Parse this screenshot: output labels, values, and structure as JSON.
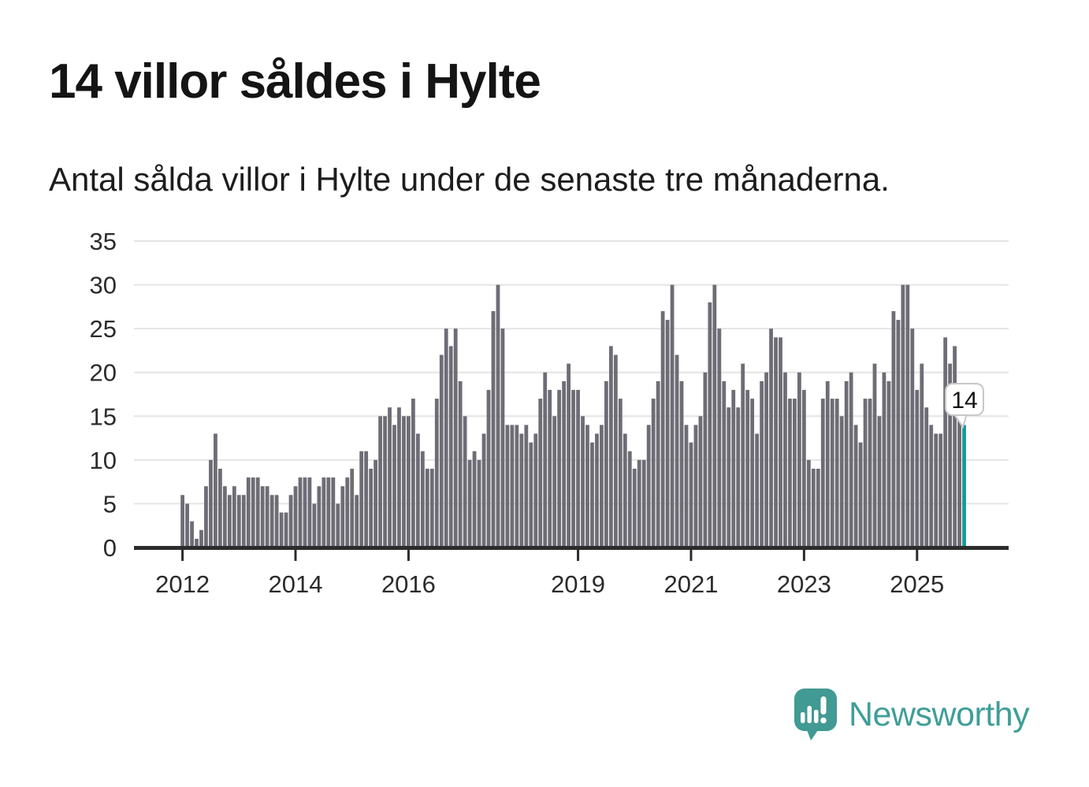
{
  "page": {
    "title": "14 villor såldes i Hylte",
    "subtitle": "Antal sålda villor i Hylte under de senaste tre månaderna."
  },
  "branding": {
    "logo_text": "Newsworthy",
    "logo_text_color": "#3f9e98",
    "icon_color": "#419a93"
  },
  "chart_data": {
    "type": "bar",
    "title": "14 villor såldes i Hylte",
    "subtitle": "Antal sålda villor i Hylte under de senaste tre månaderna.",
    "unit": "sålda villor per rullande tremånadersperiod",
    "start_month": "2012-01",
    "end_month": "2025-11",
    "values": [
      6,
      5,
      3,
      1,
      2,
      7,
      10,
      13,
      9,
      7,
      6,
      7,
      6,
      6,
      8,
      8,
      8,
      7,
      7,
      6,
      6,
      4,
      4,
      6,
      7,
      8,
      8,
      8,
      5,
      7,
      8,
      8,
      8,
      5,
      7,
      8,
      9,
      6,
      11,
      11,
      9,
      10,
      15,
      15,
      16,
      14,
      16,
      15,
      15,
      17,
      13,
      11,
      9,
      9,
      17,
      22,
      25,
      23,
      25,
      19,
      15,
      10,
      11,
      10,
      13,
      18,
      27,
      30,
      25,
      14,
      14,
      14,
      13,
      14,
      12,
      13,
      17,
      20,
      18,
      15,
      18,
      19,
      21,
      18,
      18,
      15,
      14,
      12,
      13,
      14,
      19,
      23,
      22,
      17,
      13,
      11,
      9,
      10,
      10,
      14,
      17,
      19,
      27,
      26,
      30,
      22,
      19,
      14,
      12,
      14,
      15,
      20,
      28,
      30,
      25,
      19,
      16,
      18,
      16,
      21,
      18,
      17,
      13,
      19,
      20,
      25,
      24,
      24,
      20,
      17,
      17,
      20,
      18,
      10,
      9,
      9,
      17,
      19,
      17,
      17,
      15,
      19,
      20,
      14,
      12,
      17,
      17,
      21,
      15,
      20,
      19,
      27,
      26,
      30,
      30,
      25,
      18,
      21,
      16,
      14,
      13,
      13,
      24,
      21,
      23,
      16,
      14
    ],
    "highlight_index": 166,
    "highlight_value_label": "14",
    "ylim": [
      0,
      35
    ],
    "yticks": [
      0,
      5,
      10,
      15,
      20,
      25,
      30,
      35
    ],
    "xticks": [
      {
        "label": "2012",
        "month_index": 0
      },
      {
        "label": "2014",
        "month_index": 24
      },
      {
        "label": "2016",
        "month_index": 48
      },
      {
        "label": "2019",
        "month_index": 84
      },
      {
        "label": "2021",
        "month_index": 108
      },
      {
        "label": "2023",
        "month_index": 132
      },
      {
        "label": "2025",
        "month_index": 156
      }
    ],
    "grid": "horizontal",
    "legend": "none",
    "bar_color": "#6e6d76",
    "highlight_color": "#169a96",
    "axis_color": "#2c2c2c",
    "gridline_color": "#e4e4e4",
    "annotation_border_color": "#c8c8c8"
  }
}
